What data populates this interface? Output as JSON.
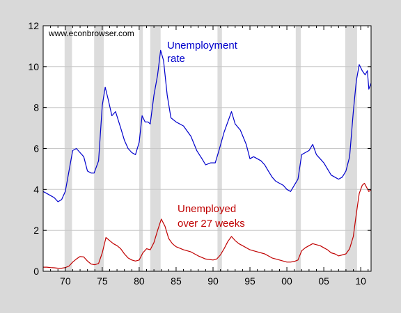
{
  "chart_data": {
    "type": "line",
    "title": "",
    "source_text": "www.econbrowser.com",
    "xlabel": "",
    "ylabel": "",
    "xlim": [
      1967,
      2011.4
    ],
    "ylim": [
      0,
      12
    ],
    "grid": "horizontal",
    "y_ticks": [
      0,
      2,
      4,
      6,
      8,
      10,
      12
    ],
    "x_ticks": [
      {
        "year": 1970,
        "label": "70"
      },
      {
        "year": 1975,
        "label": "75"
      },
      {
        "year": 1980,
        "label": "80"
      },
      {
        "year": 1985,
        "label": "85"
      },
      {
        "year": 1990,
        "label": "90"
      },
      {
        "year": 1995,
        "label": "95"
      },
      {
        "year": 2000,
        "label": "00"
      },
      {
        "year": 2005,
        "label": "05"
      },
      {
        "year": 2010,
        "label": "10"
      }
    ],
    "recessions": [
      [
        1969.9,
        1970.9
      ],
      [
        1973.9,
        1975.2
      ],
      [
        1980.0,
        1980.5
      ],
      [
        1981.5,
        1982.9
      ],
      [
        1990.6,
        1991.2
      ],
      [
        2001.2,
        2001.9
      ],
      [
        2007.9,
        2009.5
      ]
    ],
    "series": [
      {
        "name": "Unemployment rate",
        "label_lines": [
          "Unemployment",
          "rate"
        ],
        "color": "#0000cc",
        "points": [
          [
            1967.0,
            3.9
          ],
          [
            1967.5,
            3.8
          ],
          [
            1968.0,
            3.7
          ],
          [
            1968.5,
            3.6
          ],
          [
            1969.0,
            3.4
          ],
          [
            1969.5,
            3.5
          ],
          [
            1970.0,
            3.9
          ],
          [
            1970.5,
            4.9
          ],
          [
            1971.0,
            5.9
          ],
          [
            1971.5,
            6.0
          ],
          [
            1972.0,
            5.8
          ],
          [
            1972.5,
            5.6
          ],
          [
            1973.0,
            4.9
          ],
          [
            1973.5,
            4.8
          ],
          [
            1973.9,
            4.8
          ],
          [
            1974.5,
            5.4
          ],
          [
            1975.0,
            8.1
          ],
          [
            1975.4,
            9.0
          ],
          [
            1975.8,
            8.4
          ],
          [
            1976.3,
            7.6
          ],
          [
            1976.8,
            7.8
          ],
          [
            1977.5,
            7.0
          ],
          [
            1978.0,
            6.4
          ],
          [
            1978.5,
            6.0
          ],
          [
            1979.0,
            5.8
          ],
          [
            1979.5,
            5.7
          ],
          [
            1980.0,
            6.3
          ],
          [
            1980.4,
            7.6
          ],
          [
            1980.8,
            7.3
          ],
          [
            1981.2,
            7.3
          ],
          [
            1981.5,
            7.2
          ],
          [
            1982.0,
            8.6
          ],
          [
            1982.5,
            9.6
          ],
          [
            1982.9,
            10.8
          ],
          [
            1983.3,
            10.3
          ],
          [
            1983.8,
            8.6
          ],
          [
            1984.3,
            7.5
          ],
          [
            1985.0,
            7.3
          ],
          [
            1986.0,
            7.1
          ],
          [
            1987.0,
            6.6
          ],
          [
            1987.8,
            5.9
          ],
          [
            1988.5,
            5.5
          ],
          [
            1989.0,
            5.2
          ],
          [
            1989.7,
            5.3
          ],
          [
            1990.3,
            5.3
          ],
          [
            1990.8,
            5.9
          ],
          [
            1991.5,
            6.8
          ],
          [
            1992.0,
            7.3
          ],
          [
            1992.5,
            7.8
          ],
          [
            1993.0,
            7.2
          ],
          [
            1993.7,
            6.9
          ],
          [
            1994.5,
            6.2
          ],
          [
            1995.0,
            5.5
          ],
          [
            1995.5,
            5.6
          ],
          [
            1996.5,
            5.4
          ],
          [
            1997.0,
            5.2
          ],
          [
            1997.5,
            4.9
          ],
          [
            1998.0,
            4.6
          ],
          [
            1998.5,
            4.4
          ],
          [
            1999.0,
            4.3
          ],
          [
            1999.5,
            4.2
          ],
          [
            2000.0,
            4.0
          ],
          [
            2000.5,
            3.9
          ],
          [
            2001.0,
            4.2
          ],
          [
            2001.5,
            4.5
          ],
          [
            2002.0,
            5.7
          ],
          [
            2002.5,
            5.8
          ],
          [
            2003.0,
            5.9
          ],
          [
            2003.5,
            6.2
          ],
          [
            2004.0,
            5.7
          ],
          [
            2004.5,
            5.5
          ],
          [
            2005.0,
            5.3
          ],
          [
            2005.5,
            5.0
          ],
          [
            2006.0,
            4.7
          ],
          [
            2006.5,
            4.6
          ],
          [
            2007.0,
            4.5
          ],
          [
            2007.5,
            4.6
          ],
          [
            2008.0,
            4.9
          ],
          [
            2008.5,
            5.6
          ],
          [
            2009.0,
            7.8
          ],
          [
            2009.4,
            9.3
          ],
          [
            2009.8,
            10.1
          ],
          [
            2010.2,
            9.8
          ],
          [
            2010.6,
            9.6
          ],
          [
            2010.9,
            9.8
          ],
          [
            2011.1,
            8.9
          ],
          [
            2011.4,
            9.2
          ]
        ]
      },
      {
        "name": "Unemployed over 27 weeks",
        "label_lines": [
          "Unemployed",
          "over 27 weeks"
        ],
        "color": "#c00000",
        "points": [
          [
            1967.0,
            0.2
          ],
          [
            1967.5,
            0.2
          ],
          [
            1968.0,
            0.18
          ],
          [
            1968.5,
            0.17
          ],
          [
            1969.0,
            0.15
          ],
          [
            1969.5,
            0.15
          ],
          [
            1970.0,
            0.18
          ],
          [
            1970.5,
            0.25
          ],
          [
            1971.0,
            0.45
          ],
          [
            1971.5,
            0.6
          ],
          [
            1972.0,
            0.72
          ],
          [
            1972.5,
            0.7
          ],
          [
            1973.0,
            0.5
          ],
          [
            1973.5,
            0.35
          ],
          [
            1974.0,
            0.32
          ],
          [
            1974.5,
            0.38
          ],
          [
            1975.0,
            0.9
          ],
          [
            1975.5,
            1.65
          ],
          [
            1976.0,
            1.5
          ],
          [
            1976.5,
            1.35
          ],
          [
            1977.0,
            1.25
          ],
          [
            1977.5,
            1.1
          ],
          [
            1978.0,
            0.85
          ],
          [
            1978.5,
            0.65
          ],
          [
            1979.0,
            0.55
          ],
          [
            1979.5,
            0.5
          ],
          [
            1980.0,
            0.55
          ],
          [
            1980.5,
            0.9
          ],
          [
            1981.0,
            1.1
          ],
          [
            1981.5,
            1.05
          ],
          [
            1982.0,
            1.4
          ],
          [
            1982.5,
            2.0
          ],
          [
            1983.0,
            2.55
          ],
          [
            1983.5,
            2.2
          ],
          [
            1984.0,
            1.6
          ],
          [
            1984.5,
            1.35
          ],
          [
            1985.0,
            1.2
          ],
          [
            1986.0,
            1.05
          ],
          [
            1987.0,
            0.95
          ],
          [
            1988.0,
            0.75
          ],
          [
            1989.0,
            0.6
          ],
          [
            1990.0,
            0.55
          ],
          [
            1990.5,
            0.6
          ],
          [
            1991.0,
            0.8
          ],
          [
            1991.5,
            1.1
          ],
          [
            1992.0,
            1.45
          ],
          [
            1992.5,
            1.7
          ],
          [
            1993.0,
            1.5
          ],
          [
            1993.5,
            1.35
          ],
          [
            1994.0,
            1.25
          ],
          [
            1995.0,
            1.05
          ],
          [
            1996.0,
            0.95
          ],
          [
            1997.0,
            0.85
          ],
          [
            1998.0,
            0.65
          ],
          [
            1999.0,
            0.55
          ],
          [
            2000.0,
            0.45
          ],
          [
            2000.5,
            0.45
          ],
          [
            2001.0,
            0.48
          ],
          [
            2001.5,
            0.55
          ],
          [
            2002.0,
            1.0
          ],
          [
            2002.5,
            1.15
          ],
          [
            2003.0,
            1.25
          ],
          [
            2003.5,
            1.35
          ],
          [
            2004.0,
            1.3
          ],
          [
            2004.5,
            1.25
          ],
          [
            2005.0,
            1.15
          ],
          [
            2005.5,
            1.05
          ],
          [
            2006.0,
            0.9
          ],
          [
            2006.5,
            0.85
          ],
          [
            2007.0,
            0.75
          ],
          [
            2007.5,
            0.8
          ],
          [
            2008.0,
            0.85
          ],
          [
            2008.5,
            1.1
          ],
          [
            2009.0,
            1.7
          ],
          [
            2009.4,
            2.8
          ],
          [
            2009.8,
            3.8
          ],
          [
            2010.2,
            4.2
          ],
          [
            2010.5,
            4.3
          ],
          [
            2010.8,
            4.1
          ],
          [
            2011.1,
            3.9
          ],
          [
            2011.4,
            4.0
          ]
        ]
      }
    ]
  }
}
